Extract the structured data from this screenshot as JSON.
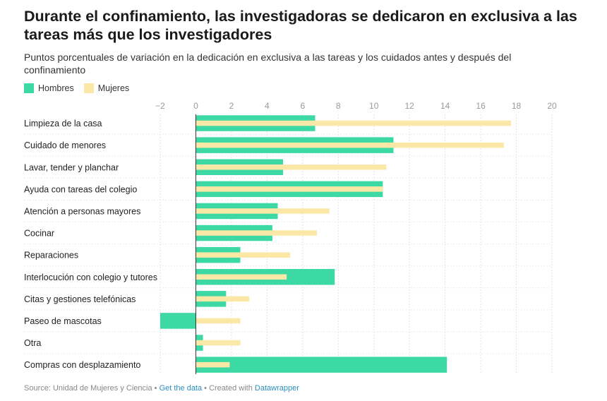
{
  "header": {
    "title": "Durante el confinamiento, las investigadoras se dedicaron en exclusiva a las tareas más que los investigadores",
    "subtitle": "Puntos porcentuales de variación en la dedicación en exclusiva a las tareas y los cuidados antes y después del confinamiento"
  },
  "footer": {
    "source": "Source: Unidad de Mujeres y Ciencia",
    "sep1": " • ",
    "get_data": "Get the data",
    "sep2": " • Created with ",
    "datawrapper": "Datawrapper"
  },
  "colors": {
    "hombres": "#3dd9a4",
    "mujeres": "#fbe8a6",
    "grid": "#e3e3e3",
    "axis": "#333333",
    "tick": "#999999"
  },
  "chart_data": {
    "type": "bar",
    "orientation": "horizontal",
    "title": "Durante el confinamiento, las investigadoras se dedicaron en exclusiva a las tareas más que los investigadores",
    "xlim": [
      -2,
      20
    ],
    "xticks": [
      -2,
      0,
      2,
      4,
      6,
      8,
      10,
      12,
      14,
      16,
      18,
      20
    ],
    "grid": true,
    "legend": "top-left",
    "categories": [
      "Limpieza de la casa",
      "Cuidado de menores",
      "Lavar, tender y planchar",
      "Ayuda con tareas del colegio",
      "Atención a personas mayores",
      "Cocinar",
      "Reparaciones",
      "Interlocución con colegio y tutores",
      "Citas y gestiones telefónicas",
      "Paseo de mascotas",
      "Otra",
      "Compras con desplazamiento"
    ],
    "series": [
      {
        "name": "Hombres",
        "values": [
          6.7,
          11.1,
          4.9,
          10.5,
          4.6,
          4.3,
          2.5,
          7.8,
          1.7,
          -2.0,
          0.4,
          14.1
        ]
      },
      {
        "name": "Mujeres",
        "values": [
          17.7,
          17.3,
          10.7,
          10.5,
          7.5,
          6.8,
          5.3,
          5.1,
          3.0,
          2.5,
          2.5,
          1.9
        ]
      }
    ]
  }
}
